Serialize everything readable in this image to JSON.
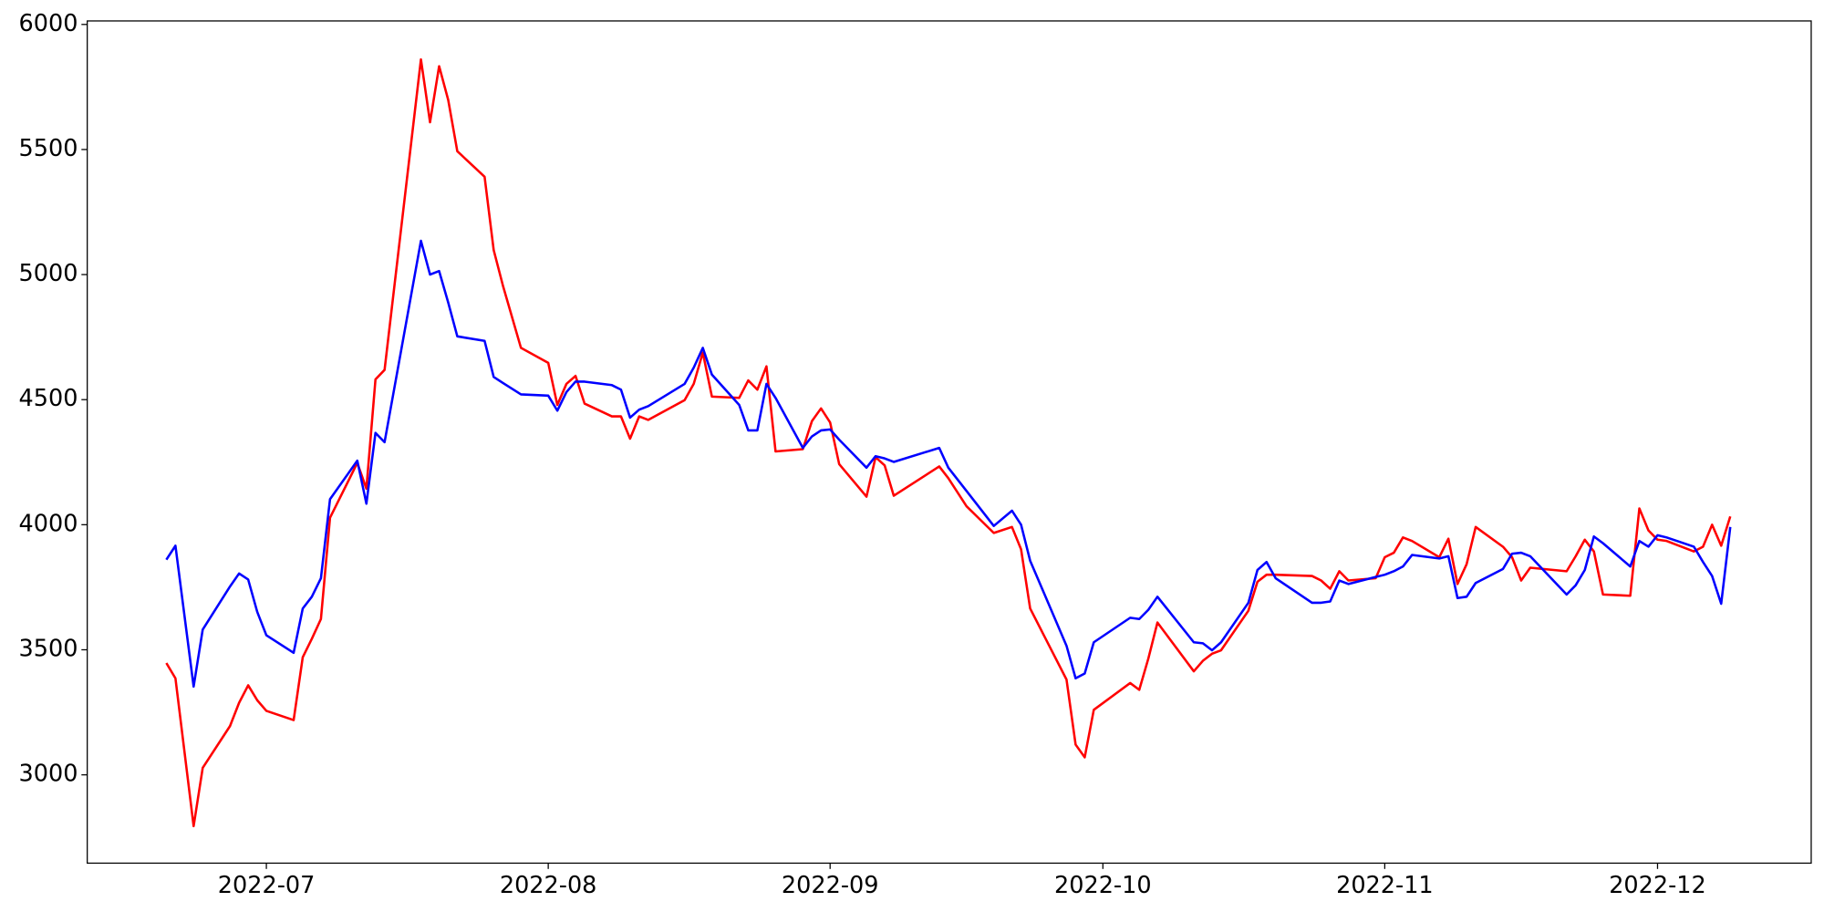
{
  "chart_data": {
    "type": "line",
    "x": [
      19163,
      19164,
      19166,
      19167,
      19170,
      19171,
      19172,
      19173,
      19174,
      19177,
      19178,
      19179,
      19180,
      19181,
      19184,
      19185,
      19186,
      19187,
      19191,
      19192,
      19193,
      19194,
      19195,
      19198,
      19199,
      19200,
      19202,
      19205,
      19206,
      19207,
      19208,
      19209,
      19212,
      19213,
      19214,
      19215,
      19216,
      19220,
      19221,
      19222,
      19223,
      19226,
      19227,
      19228,
      19229,
      19230,
      19233,
      19234,
      19235,
      19236,
      19237,
      19240,
      19241,
      19242,
      19243,
      19248,
      19249,
      19251,
      19254,
      19256,
      19257,
      19258,
      19262,
      19263,
      19264,
      19265,
      19269,
      19270,
      19271,
      19272,
      19276,
      19277,
      19278,
      19279,
      19282,
      19283,
      19284,
      19285,
      19289,
      19290,
      19291,
      19292,
      19293,
      19296,
      19297,
      19298,
      19299,
      19300,
      19303,
      19304,
      19305,
      19306,
      19307,
      19310,
      19311,
      19312,
      19313,
      19317,
      19318,
      19319,
      19320,
      19321,
      19324,
      19325,
      19326,
      19327,
      19328,
      19331,
      19332,
      19333,
      19334,
      19335
    ],
    "series": [
      {
        "color": "#ff0000",
        "values": [
          3447,
          3386,
          2795,
          3028,
          3195,
          3288,
          3358,
          3298,
          3256,
          3219,
          3470,
          3544,
          3623,
          4028,
          4247,
          4144,
          4581,
          4619,
          5860,
          5609,
          5833,
          5698,
          5493,
          5391,
          5098,
          4958,
          4707,
          4647,
          4479,
          4563,
          4595,
          4484,
          4433,
          4433,
          4344,
          4433,
          4419,
          4498,
          4563,
          4688,
          4512,
          4507,
          4577,
          4540,
          4633,
          4293,
          4302,
          4414,
          4465,
          4409,
          4242,
          4112,
          4270,
          4237,
          4116,
          4233,
          4186,
          4074,
          3967,
          3991,
          3902,
          3665,
          3381,
          3121,
          3070,
          3260,
          3367,
          3340,
          3465,
          3609,
          3414,
          3456,
          3484,
          3498,
          3656,
          3772,
          3800,
          3800,
          3795,
          3777,
          3744,
          3814,
          3777,
          3786,
          3870,
          3888,
          3949,
          3935,
          3870,
          3944,
          3763,
          3842,
          3991,
          3912,
          3870,
          3777,
          3828,
          3814,
          3874,
          3940,
          3893,
          3721,
          3716,
          4065,
          3977,
          3940,
          3935,
          3893,
          3912,
          4000,
          3916,
          4033
        ]
      },
      {
        "color": "#0000ff",
        "values": [
          3860,
          3916,
          3353,
          3581,
          3753,
          3805,
          3781,
          3651,
          3558,
          3488,
          3665,
          3712,
          3786,
          4102,
          4256,
          4084,
          4367,
          4330,
          5135,
          5000,
          5014,
          4888,
          4753,
          4735,
          4591,
          4567,
          4521,
          4516,
          4456,
          4530,
          4572,
          4572,
          4558,
          4540,
          4428,
          4460,
          4474,
          4563,
          4628,
          4707,
          4600,
          4479,
          4377,
          4377,
          4563,
          4507,
          4307,
          4353,
          4377,
          4381,
          4340,
          4228,
          4274,
          4265,
          4251,
          4307,
          4228,
          4135,
          3995,
          4056,
          4000,
          3856,
          3516,
          3386,
          3405,
          3530,
          3628,
          3623,
          3660,
          3712,
          3530,
          3526,
          3498,
          3530,
          3688,
          3819,
          3851,
          3786,
          3688,
          3688,
          3693,
          3777,
          3763,
          3791,
          3800,
          3814,
          3833,
          3879,
          3865,
          3874,
          3707,
          3712,
          3767,
          3823,
          3884,
          3888,
          3874,
          3721,
          3758,
          3819,
          3953,
          3926,
          3833,
          3935,
          3912,
          3958,
          3949,
          3912,
          3851,
          3795,
          3684,
          3991
        ]
      }
    ],
    "xlim": [
      19154.3,
      19343.9
    ],
    "xticks": [
      {
        "value": 19174,
        "label": "2022-07"
      },
      {
        "value": 19205,
        "label": "2022-08"
      },
      {
        "value": 19236,
        "label": "2022-09"
      },
      {
        "value": 19266,
        "label": "2022-10"
      },
      {
        "value": 19297,
        "label": "2022-11"
      },
      {
        "value": 19327,
        "label": "2022-12"
      }
    ],
    "ylim": [
      2647,
      6014
    ],
    "yticks": [
      3000,
      3500,
      4000,
      4500,
      5000,
      5500,
      6000
    ],
    "grid": false
  }
}
